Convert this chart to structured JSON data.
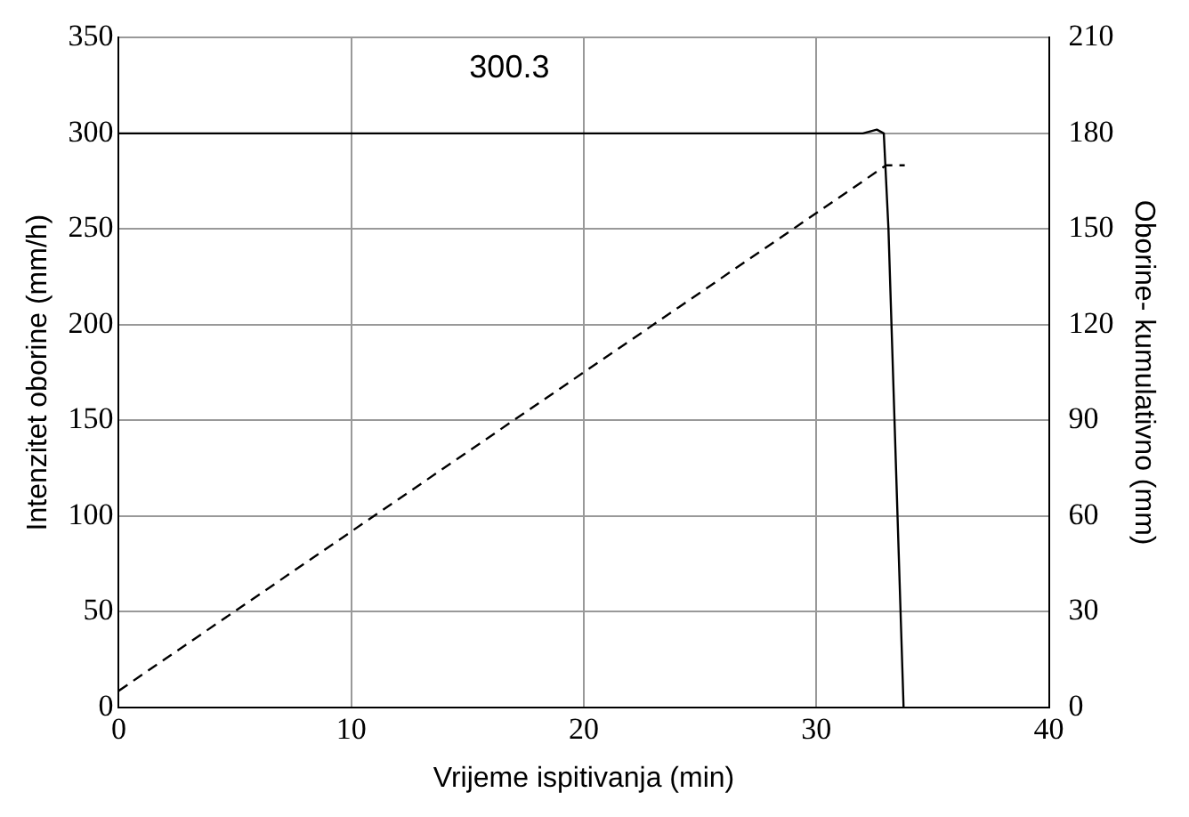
{
  "chart_data": {
    "type": "line",
    "xlabel": "Vrijeme ispitivanja (min)",
    "ylabel": "Intenzitet oborine (mm/h)",
    "y2label": "Oborine- kumulativno (mm)",
    "xlim": [
      0,
      40
    ],
    "xticks": [
      0,
      10,
      20,
      30,
      40
    ],
    "ylim": [
      0,
      350
    ],
    "yticks": [
      0,
      50,
      100,
      150,
      200,
      250,
      300,
      350
    ],
    "y2lim": [
      0,
      210
    ],
    "y2ticks": [
      0,
      30,
      60,
      90,
      120,
      150,
      180,
      210
    ],
    "grid": true,
    "legend": false,
    "marker": "none",
    "series": [
      {
        "color": "#000000",
        "line_style": "solid",
        "axis": "y",
        "x": [
          0,
          32,
          32.6,
          32.9,
          33.1,
          33.75
        ],
        "values": [
          300,
          300,
          302,
          300,
          250,
          0
        ]
      },
      {
        "color": "#000000",
        "line_style": "dashed",
        "axis": "y2",
        "x": [
          0,
          33,
          33.8
        ],
        "values": [
          5.2,
          170,
          170
        ]
      }
    ],
    "annotations": [
      "300.3"
    ]
  }
}
